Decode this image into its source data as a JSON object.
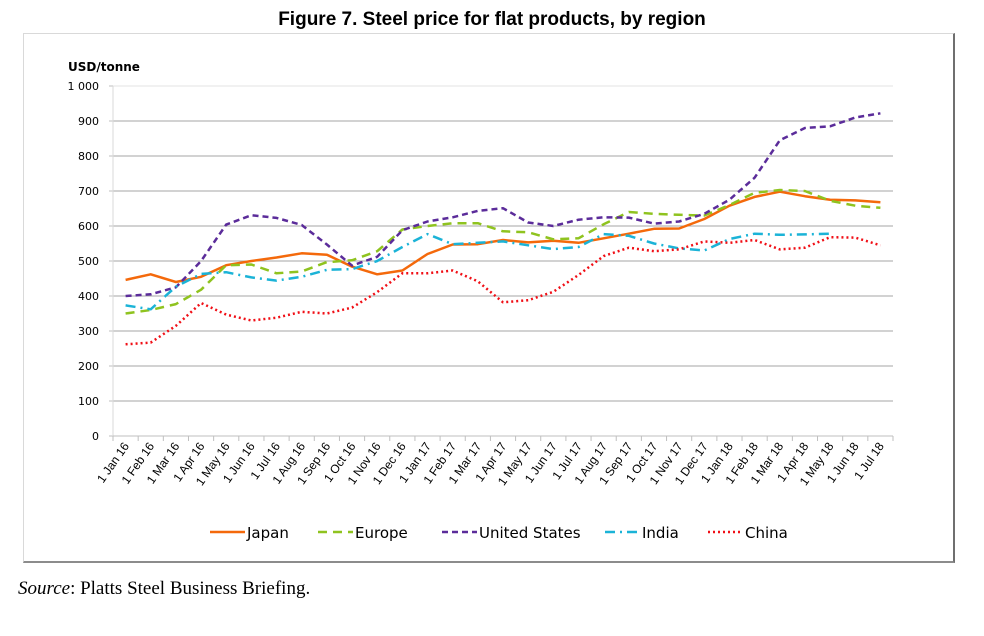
{
  "figure": {
    "title": "Figure 7. Steel price for flat products, by region",
    "source_label": "Source",
    "source_text": ": Platts Steel Business Briefing."
  },
  "chart_data": {
    "type": "line",
    "title": "Figure 7. Steel price for flat products, by region",
    "ylabel": "USD/tonne",
    "xlabel": "",
    "ylim": [
      0,
      1000
    ],
    "yticks": [
      0,
      100,
      200,
      300,
      400,
      500,
      600,
      700,
      800,
      900,
      1000
    ],
    "ytick_labels": [
      "0",
      "100",
      "200",
      "300",
      "400",
      "500",
      "600",
      "700",
      "800",
      "900",
      "1 000"
    ],
    "grid": true,
    "legend_position": "bottom",
    "categories": [
      "1 Jan 16",
      "1 Feb 16",
      "1 Mar 16",
      "1 Apr 16",
      "1 May 16",
      "1 Jun 16",
      "1 Jul 16",
      "1 Aug 16",
      "1 Sep 16",
      "1 Oct 16",
      "1 Nov 16",
      "1 Dec 16",
      "1 Jan 17",
      "1 Feb 17",
      "1 Mar 17",
      "1 Apr 17",
      "1 May 17",
      "1 Jun 17",
      "1 Jul 17",
      "1 Aug 17",
      "1 Sep 17",
      "1 Oct 17",
      "1 Nov 17",
      "1 Dec 17",
      "1 Jan 18",
      "1 Feb 18",
      "1 Mar 18",
      "1 Apr 18",
      "1 May 18",
      "1 Jun 18",
      "1 Jul 18"
    ],
    "series": [
      {
        "name": "Japan",
        "color": "#f4690b",
        "dash": "solid",
        "values": [
          446,
          462,
          440,
          455,
          488,
          500,
          510,
          522,
          518,
          484,
          462,
          473,
          520,
          547,
          548,
          560,
          553,
          558,
          552,
          565,
          578,
          592,
          593,
          620,
          658,
          683,
          698,
          685,
          675,
          673,
          668
        ]
      },
      {
        "name": "Europe",
        "color": "#8fc31f",
        "dash": "dash",
        "values": [
          350,
          360,
          377,
          418,
          488,
          490,
          465,
          470,
          497,
          502,
          528,
          590,
          600,
          608,
          608,
          585,
          582,
          562,
          565,
          605,
          640,
          635,
          632,
          630,
          660,
          695,
          703,
          700,
          672,
          658,
          652
        ]
      },
      {
        "name": "United States",
        "color": "#5b2c9a",
        "dash": "dash-short",
        "values": [
          400,
          405,
          425,
          500,
          604,
          631,
          623,
          603,
          547,
          487,
          512,
          588,
          613,
          625,
          643,
          651,
          610,
          600,
          618,
          625,
          624,
          607,
          613,
          635,
          675,
          738,
          845,
          880,
          885,
          910,
          922
        ]
      },
      {
        "name": "India",
        "color": "#1bb3d7",
        "dash": "dashdot",
        "values": [
          373,
          362,
          427,
          463,
          468,
          453,
          444,
          455,
          475,
          477,
          500,
          540,
          577,
          548,
          552,
          556,
          545,
          534,
          540,
          577,
          572,
          550,
          536,
          530,
          563,
          578,
          575,
          576,
          578,
          null,
          null
        ]
      },
      {
        "name": "China",
        "color": "#f00f16",
        "dash": "dot",
        "values": [
          262,
          267,
          315,
          380,
          347,
          330,
          338,
          355,
          350,
          367,
          411,
          465,
          465,
          473,
          442,
          382,
          388,
          412,
          460,
          514,
          538,
          528,
          533,
          556,
          552,
          560,
          533,
          538,
          568,
          567,
          545
        ]
      }
    ]
  }
}
